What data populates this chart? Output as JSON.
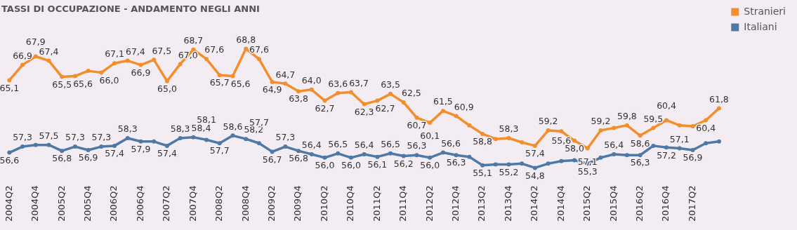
{
  "chart_data": {
    "type": "line",
    "title": "TASSI DI OCCUPAZIONE - ANDAMENTO NEGLI ANNI",
    "categories": [
      "2004Q2",
      null,
      "2004Q4",
      null,
      "2005Q2",
      null,
      "2005Q4",
      null,
      "2006Q2",
      null,
      "2006Q4",
      null,
      "2007Q2",
      null,
      "2007Q4",
      null,
      "2008Q2",
      null,
      "2008Q4",
      null,
      "2009Q2",
      null,
      "2009Q4",
      null,
      "2010Q2",
      null,
      "2010Q4",
      null,
      "2011Q2",
      null,
      "2011Q4",
      null,
      "2012Q2",
      null,
      "2012Q4",
      null,
      "2013Q2",
      null,
      "2013Q4",
      null,
      "2014Q2",
      null,
      "2014Q4",
      null,
      "2015Q2",
      null,
      "2015Q4",
      null,
      "2016Q2",
      null,
      "2016Q4",
      null,
      "2017Q2",
      null,
      null
    ],
    "series": [
      {
        "name": "Stranieri",
        "color": "#f28e2b",
        "values": [
          65.1,
          66.9,
          67.9,
          67.4,
          65.5,
          65.6,
          66.2,
          66.0,
          67.1,
          67.4,
          66.9,
          67.5,
          65.0,
          67.0,
          68.7,
          67.6,
          65.7,
          65.6,
          68.8,
          67.6,
          64.9,
          64.7,
          63.8,
          64.0,
          62.7,
          63.6,
          63.7,
          62.3,
          62.7,
          63.5,
          62.5,
          60.7,
          60.1,
          61.5,
          60.9,
          59.8,
          58.8,
          58.2,
          58.3,
          57.8,
          57.4,
          59.2,
          59.1,
          58.0,
          57.1,
          59.2,
          59.5,
          59.8,
          58.6,
          59.5,
          60.4,
          59.8,
          59.7,
          60.4,
          61.8
        ],
        "value_labels": [
          "65,1",
          "66,9",
          "67,9",
          "67,4",
          "65,5",
          "65,6",
          null,
          "66,0",
          "67,1",
          "67,4",
          "66,9",
          "67,5",
          "65,0",
          "67,0",
          "68,7",
          "67,6",
          "65,7",
          "65,6",
          "68,8",
          "67,6",
          "64,9",
          "64,7",
          "63,8",
          "64,0",
          "62,7",
          "63,6",
          "63,7",
          "62,3",
          "62,7",
          "63,5",
          "62,5",
          "60,7",
          "60,1",
          "61,5",
          "60,9",
          null,
          "58,8",
          null,
          "58,3",
          null,
          "57,4",
          "59,2",
          null,
          "58,0",
          "57,1",
          "59,2",
          null,
          "59,8",
          "58,6",
          "59,5",
          "60,4",
          null,
          null,
          "60,4",
          "61,8"
        ]
      },
      {
        "name": "Italiani",
        "color": "#4e79a7",
        "values": [
          56.6,
          57.3,
          57.5,
          57.5,
          56.8,
          57.3,
          56.9,
          57.3,
          57.4,
          58.3,
          57.9,
          57.9,
          57.4,
          58.3,
          58.4,
          58.1,
          57.7,
          58.6,
          58.2,
          57.7,
          56.7,
          57.3,
          56.8,
          56.4,
          56.0,
          56.5,
          56.0,
          56.4,
          56.1,
          56.5,
          56.2,
          56.3,
          56.0,
          56.6,
          56.3,
          56.1,
          55.1,
          55.2,
          55.2,
          55.3,
          54.8,
          55.3,
          55.6,
          55.7,
          55.3,
          56.0,
          56.4,
          56.3,
          56.3,
          57.4,
          57.2,
          57.1,
          56.9,
          57.7,
          57.9
        ],
        "value_labels": [
          "56,6",
          "57,3",
          null,
          "57,5",
          "56,8",
          "57,3",
          "56,9",
          "57,3",
          "57,4",
          "58,3",
          "57,9",
          null,
          "57,4",
          "58,3",
          "58,4",
          "58,1",
          "57,7",
          "58,6",
          "58,2",
          "57,7",
          "56,7",
          "57,3",
          "56,8",
          "56,4",
          "56,0",
          "56,5",
          "56,0",
          "56,4",
          "56,1",
          "56,5",
          "56,2",
          "56,3",
          "56,0",
          "56,6",
          "56,3",
          null,
          "55,1",
          null,
          "55,2",
          null,
          "54,8",
          null,
          "55,6",
          null,
          "55,3",
          null,
          "56,4",
          null,
          "56,3",
          null,
          "57,2",
          "57,1",
          "56,9",
          null,
          null
        ]
      }
    ],
    "legend": "top right",
    "marker": "circle",
    "line_style": "solid",
    "grid": false
  }
}
